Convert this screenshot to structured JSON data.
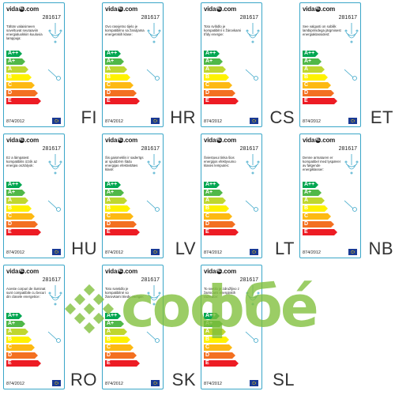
{
  "labels": [
    {
      "lang": "FI",
      "code": "281617",
      "desc": "Tähän valaisimeen soveltuvat seuraaviin energialuokkiin kuuluvia lamppuja:",
      "reg": "874/2012"
    },
    {
      "lang": "HR",
      "code": "281617",
      "desc": "Ovo rasvjetno tijelo je kompatibilno sa žaruljama energetskih klase:",
      "reg": "874/2012"
    },
    {
      "lang": "CS",
      "code": "281617",
      "desc": "Toto svítidlo je kompatibilní s žárovkami třídy energie:",
      "reg": "874/2012"
    },
    {
      "lang": "ET",
      "code": "281617",
      "desc": "See valgusti on sobilik lambipirnidega järgmisest energiaklassidest:",
      "reg": "874/2012"
    },
    {
      "lang": "HU",
      "code": "281617",
      "desc": "Ez a lámpatest kompatibilis izzók az energia osztályok:",
      "reg": "874/2012"
    },
    {
      "lang": "LV",
      "code": "281617",
      "desc": "Šis gaismeklis ir saderīgs ar spuldzēm šādu energijas efektivitātes klasē:",
      "reg": "874/2012"
    },
    {
      "lang": "LT",
      "code": "281617",
      "desc": "Šviestuvui tinka šios energijos efektyvumo klasės lemputės:",
      "reg": "874/2012"
    },
    {
      "lang": "NB",
      "code": "281617",
      "desc": "Denne armaturen er kompatibel med lyspærer av følgende energiklasser:",
      "reg": "874/2012"
    },
    {
      "lang": "RO",
      "code": "281617",
      "desc": "Aceste corpuri de iluminat sunt compatibile cu becuri din clasele energetice:",
      "reg": "874/2012"
    },
    {
      "lang": "SK",
      "code": "281617",
      "desc": "Toto svietidlo je kompatibilné so žiarovkami triedy energie:",
      "reg": "874/2012"
    },
    {
      "lang": "SL",
      "code": "281617",
      "desc": "To svetilo je združljivo z žarnicami energijskih razredov:",
      "reg": "874/2012"
    }
  ],
  "energy_classes": [
    "A++",
    "A+",
    "A",
    "B",
    "C",
    "D",
    "E"
  ],
  "energy_colors": [
    "#00a651",
    "#50b848",
    "#bfd730",
    "#fff200",
    "#fdb913",
    "#f37021",
    "#ed1c24"
  ],
  "logo": {
    "brand": "vidaXL",
    "text_pre": "vida",
    "text_mid": "XL",
    "text_post": ".com"
  },
  "watermark": {
    "text": "софбé"
  }
}
